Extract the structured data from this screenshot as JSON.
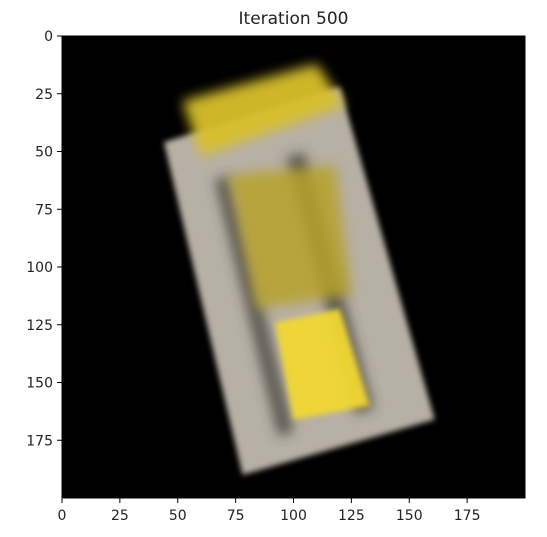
{
  "chart_data": {
    "type": "image",
    "title": "Iteration 500",
    "xlabel": "",
    "ylabel": "",
    "xlim": [
      0,
      200
    ],
    "ylim": [
      200,
      0
    ],
    "xticks": [
      0,
      25,
      50,
      75,
      100,
      125,
      150,
      175
    ],
    "yticks": [
      0,
      25,
      50,
      75,
      100,
      125,
      150,
      175
    ],
    "grid": false,
    "background_color": "#000000",
    "object": {
      "description_shape": "rotated rectangular box",
      "body_corners": [
        [
          44,
          46
        ],
        [
          120,
          22
        ],
        [
          161,
          166
        ],
        [
          78,
          190
        ]
      ],
      "body_color": "#d8cfc2",
      "stripe_color": "#3a3a36",
      "top_blob_color": "#d8c02a",
      "top_blob_corners": [
        [
          52,
          28
        ],
        [
          110,
          12
        ],
        [
          122,
          30
        ],
        [
          60,
          52
        ]
      ],
      "mid_blob_color": "#b8a22c",
      "mid_blob_corners": [
        [
          72,
          60
        ],
        [
          118,
          56
        ],
        [
          125,
          112
        ],
        [
          84,
          118
        ]
      ],
      "bright_square_color": "#f2d830",
      "bright_square_corners": [
        [
          92,
          124
        ],
        [
          120,
          118
        ],
        [
          133,
          160
        ],
        [
          100,
          166
        ]
      ]
    }
  }
}
